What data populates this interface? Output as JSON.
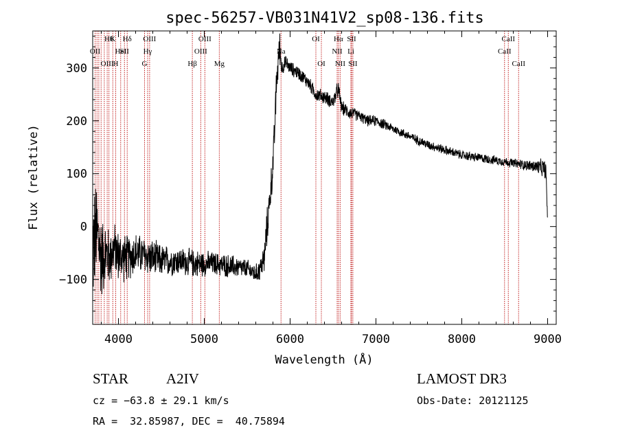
{
  "chart_data": {
    "type": "line",
    "title": "spec-56257-VB031N41V2_sp08-136.fits",
    "xlabel": "Wavelength (Å)",
    "ylabel": "Flux (relative)",
    "xlim": [
      3700,
      9100
    ],
    "ylim": [
      -185,
      370
    ],
    "x_ticks": [
      {
        "value": 4000,
        "label": "4000"
      },
      {
        "value": 5000,
        "label": "5000"
      },
      {
        "value": 6000,
        "label": "6000"
      },
      {
        "value": 7000,
        "label": "7000"
      },
      {
        "value": 8000,
        "label": "8000"
      },
      {
        "value": 9000,
        "label": "9000"
      }
    ],
    "y_ticks": [
      {
        "value": -100,
        "label": "−100"
      },
      {
        "value": 0,
        "label": "0"
      },
      {
        "value": 100,
        "label": "100"
      },
      {
        "value": 200,
        "label": "200"
      },
      {
        "value": 300,
        "label": "300"
      }
    ],
    "series": [
      {
        "name": "flux",
        "x": [
          3700,
          3750,
          3800,
          3850,
          3900,
          3950,
          4000,
          4100,
          4200,
          4300,
          4400,
          4500,
          4700,
          4900,
          5100,
          5300,
          5500,
          5600,
          5650,
          5700,
          5720,
          5750,
          5780,
          5800,
          5820,
          5840,
          5860,
          5880,
          5900,
          5950,
          6000,
          6100,
          6200,
          6300,
          6400,
          6500,
          6560,
          6600,
          6700,
          6800,
          6900,
          7000,
          7200,
          7400,
          7600,
          7800,
          8000,
          8200,
          8400,
          8600,
          8800,
          8960,
          8980,
          9000
        ],
        "y": [
          -40,
          -10,
          -60,
          -50,
          -60,
          -40,
          -55,
          -60,
          -50,
          -55,
          -60,
          -65,
          -65,
          -70,
          -70,
          -75,
          -80,
          -90,
          -80,
          -60,
          -20,
          30,
          80,
          120,
          180,
          270,
          310,
          340,
          300,
          310,
          300,
          290,
          275,
          250,
          245,
          235,
          260,
          225,
          215,
          210,
          200,
          200,
          185,
          170,
          155,
          145,
          135,
          130,
          125,
          120,
          115,
          110,
          105,
          10
        ],
        "noise": [
          130,
          110,
          90,
          70,
          60,
          55,
          55,
          50,
          45,
          40,
          40,
          35,
          30,
          30,
          25,
          25,
          20,
          20,
          25,
          35,
          40,
          40,
          40,
          40,
          40,
          40,
          40,
          35,
          20,
          15,
          15,
          15,
          15,
          15,
          15,
          15,
          20,
          15,
          15,
          12,
          12,
          12,
          10,
          10,
          10,
          10,
          10,
          10,
          10,
          10,
          12,
          20,
          20,
          20
        ]
      }
    ],
    "line_markers": [
      {
        "wave": 3728,
        "label": "OII",
        "row": 1
      },
      {
        "wave": 3750,
        "label": "",
        "row": 0
      },
      {
        "wave": 3771,
        "label": "",
        "row": 0
      },
      {
        "wave": 3798,
        "label": "",
        "row": 0
      },
      {
        "wave": 3835,
        "label": "",
        "row": 0
      },
      {
        "wave": 3869,
        "label": "OIII",
        "row": 2
      },
      {
        "wave": 3889,
        "label": "Hθ",
        "row": 0
      },
      {
        "wave": 3934,
        "label": "K",
        "row": 0
      },
      {
        "wave": 3968,
        "label": "H",
        "row": 2
      },
      {
        "wave": 4026,
        "label": "HeI",
        "row": 1
      },
      {
        "wave": 4070,
        "label": "SII",
        "row": 1
      },
      {
        "wave": 4102,
        "label": "Hδ",
        "row": 0
      },
      {
        "wave": 4304,
        "label": "G",
        "row": 2
      },
      {
        "wave": 4340,
        "label": "Hγ",
        "row": 1
      },
      {
        "wave": 4363,
        "label": "OIII",
        "row": 0
      },
      {
        "wave": 4861,
        "label": "Hβ",
        "row": 2
      },
      {
        "wave": 4959,
        "label": "OIII",
        "row": 1
      },
      {
        "wave": 5007,
        "label": "OIII",
        "row": 0
      },
      {
        "wave": 5175,
        "label": "Mg",
        "row": 2
      },
      {
        "wave": 5894,
        "label": "Na",
        "row": 1
      },
      {
        "wave": 6300,
        "label": "OI",
        "row": 0
      },
      {
        "wave": 6364,
        "label": "OI",
        "row": 2
      },
      {
        "wave": 6548,
        "label": "NII",
        "row": 1
      },
      {
        "wave": 6563,
        "label": "Hα",
        "row": 0
      },
      {
        "wave": 6583,
        "label": "NII",
        "row": 2
      },
      {
        "wave": 6708,
        "label": "Li",
        "row": 1
      },
      {
        "wave": 6716,
        "label": "SII",
        "row": 0
      },
      {
        "wave": 6731,
        "label": "SII",
        "row": 2
      },
      {
        "wave": 8498,
        "label": "CaII",
        "row": 1
      },
      {
        "wave": 8542,
        "label": "CaII",
        "row": 0
      },
      {
        "wave": 8662,
        "label": "CaII",
        "row": 2
      }
    ]
  },
  "info": {
    "object_class": "STAR",
    "subclass": "A2IV",
    "survey": "LAMOST DR3",
    "cz": "cz = −63.8 ± 29.1 km/s",
    "obs_date": "Obs-Date: 20121125",
    "coords": "RA =  32.85987, DEC =  40.75894"
  },
  "colors": {
    "line": "#000000",
    "marker": "#c01a1a",
    "axis": "#000000"
  }
}
